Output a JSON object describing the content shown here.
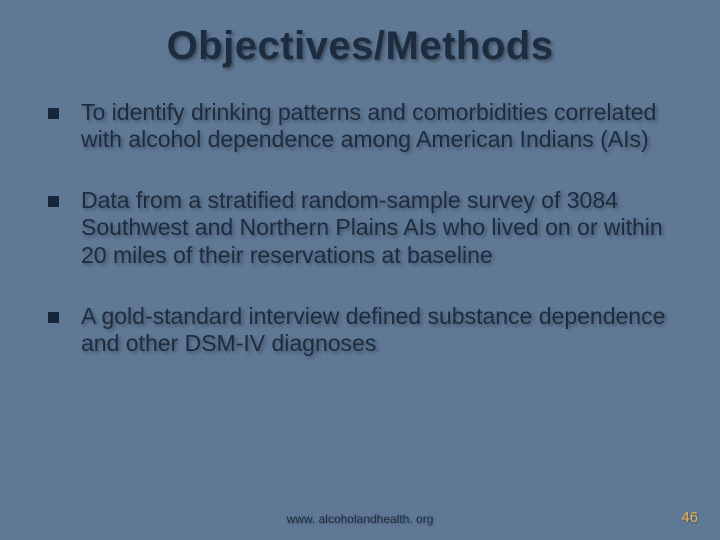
{
  "slide": {
    "background_color": "#5f7894",
    "title": "Objectives/Methods",
    "title_color": "#1d2c3f",
    "title_fontsize": 40,
    "bullet_marker_color": "#15253a",
    "bullet_text_color": "#1d2c3f",
    "bullet_fontsize": 23,
    "bullets": [
      {
        "text": "To identify drinking patterns and comorbidities correlated with alcohol dependence among American Indians (AIs)"
      },
      {
        "text": "Data from a stratified random-sample survey of 3084 Southwest and Northern Plains AIs who lived on or within 20 miles of their reservations at baseline"
      },
      {
        "text": "A gold-standard interview defined substance dependence and other DSM-IV diagnoses"
      }
    ],
    "footer_url": "www. alcoholandhealth. org",
    "footer_color": "#1d2c3f",
    "slide_number": "46",
    "slide_number_color": "#e9b24a"
  }
}
